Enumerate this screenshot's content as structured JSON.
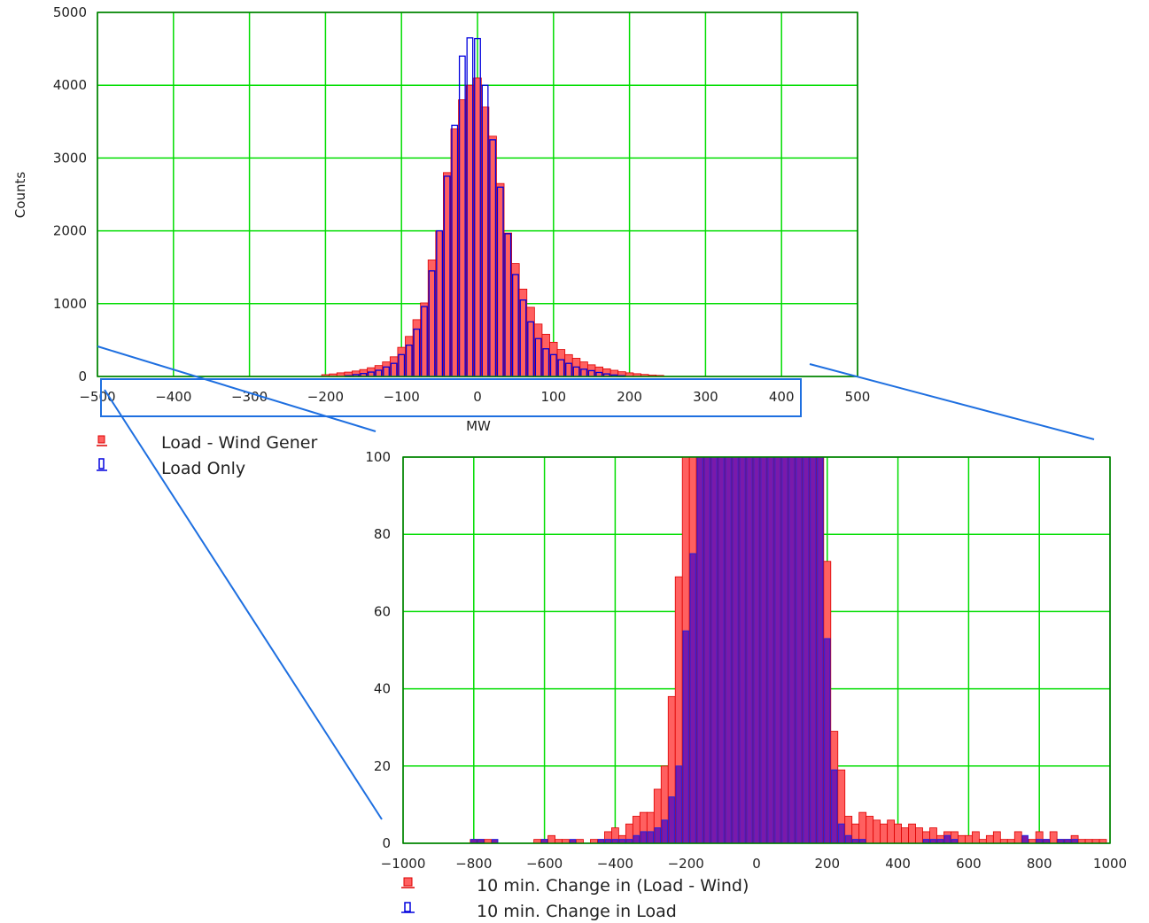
{
  "chart_data": [
    {
      "type": "bar",
      "title": "",
      "xlabel": "MW",
      "ylabel": "Counts",
      "xlim": [
        -500,
        500
      ],
      "ylim": [
        0,
        5000
      ],
      "xticks": [
        "−500",
        "−400",
        "−300",
        "−200",
        "−100",
        "0",
        "100",
        "200",
        "300",
        "400",
        "500"
      ],
      "yticks": [
        "0",
        "1000",
        "2000",
        "3000",
        "4000",
        "5000"
      ],
      "grid": true,
      "grid_color": "#00dd00",
      "bin_width": 10,
      "legend": {
        "placement": "bottom-left"
      },
      "series": [
        {
          "name": "Load - Wind Gener",
          "style": "filled",
          "fill": "#ff6060",
          "edge": "#dd0000",
          "x": [
            -200,
            -190,
            -180,
            -170,
            -160,
            -150,
            -140,
            -130,
            -120,
            -110,
            -100,
            -90,
            -80,
            -70,
            -60,
            -50,
            -40,
            -30,
            -20,
            -10,
            0,
            10,
            20,
            30,
            40,
            50,
            60,
            70,
            80,
            90,
            100,
            110,
            120,
            130,
            140,
            150,
            160,
            170,
            180,
            190,
            200,
            210,
            220,
            230,
            240
          ],
          "values": [
            25,
            35,
            50,
            60,
            75,
            95,
            120,
            150,
            200,
            270,
            400,
            550,
            780,
            1010,
            1600,
            2000,
            2800,
            3400,
            3800,
            4000,
            4100,
            3700,
            3300,
            2650,
            1970,
            1550,
            1200,
            950,
            720,
            580,
            470,
            370,
            300,
            250,
            200,
            160,
            130,
            105,
            85,
            65,
            50,
            38,
            28,
            20,
            15
          ]
        },
        {
          "name": "Load Only",
          "style": "outline",
          "fill": "#3333ee",
          "edge": "#0000dd",
          "x": [
            -170,
            -160,
            -150,
            -140,
            -130,
            -120,
            -110,
            -100,
            -90,
            -80,
            -70,
            -60,
            -50,
            -40,
            -30,
            -20,
            -10,
            0,
            10,
            20,
            30,
            40,
            50,
            60,
            70,
            80,
            90,
            100,
            110,
            120,
            130,
            140,
            150,
            160,
            170,
            180,
            190
          ],
          "values": [
            10,
            25,
            40,
            60,
            85,
            130,
            180,
            300,
            430,
            650,
            960,
            1450,
            2000,
            2750,
            3450,
            4400,
            4650,
            4640,
            4000,
            3250,
            2600,
            1960,
            1400,
            1050,
            750,
            520,
            380,
            300,
            230,
            180,
            130,
            100,
            80,
            55,
            35,
            20,
            10
          ]
        }
      ]
    },
    {
      "type": "bar",
      "title": "",
      "xlabel": "",
      "ylabel": "",
      "xlim": [
        -1000,
        1000
      ],
      "ylim": [
        0,
        100
      ],
      "xticks": [
        "−1000",
        "−800",
        "−600",
        "−400",
        "−200",
        "0",
        "200",
        "400",
        "600",
        "800",
        "1000"
      ],
      "yticks": [
        "0",
        "20",
        "40",
        "60",
        "80",
        "100"
      ],
      "grid": true,
      "grid_color": "#00dd00",
      "bin_width": 20,
      "legend": {
        "placement": "bottom"
      },
      "series": [
        {
          "name": "10 min. Change in (Load - Wind)",
          "style": "filled",
          "fill": "#ff6060",
          "edge": "#dd0000",
          "x": [
            -800,
            -780,
            -760,
            -620,
            -600,
            -580,
            -560,
            -540,
            -500,
            -460,
            -440,
            -420,
            -400,
            -380,
            -360,
            -340,
            -320,
            -300,
            -280,
            -260,
            -240,
            -220,
            -200,
            -180,
            -160,
            -140,
            -120,
            -100,
            -80,
            -60,
            -40,
            -20,
            0,
            20,
            40,
            60,
            80,
            100,
            120,
            140,
            160,
            180,
            200,
            220,
            240,
            260,
            280,
            300,
            320,
            340,
            360,
            380,
            400,
            420,
            440,
            460,
            480,
            500,
            520,
            540,
            560,
            580,
            600,
            620,
            640,
            660,
            680,
            700,
            720,
            740,
            760,
            780,
            800,
            820,
            840,
            860,
            880,
            900,
            920,
            940,
            960,
            980
          ],
          "values": [
            1,
            1,
            1,
            1,
            1,
            2,
            1,
            1,
            1,
            1,
            1,
            3,
            4,
            2,
            5,
            7,
            8,
            8,
            14,
            20,
            38,
            69,
            100,
            100,
            100,
            100,
            100,
            100,
            100,
            100,
            100,
            100,
            100,
            100,
            100,
            100,
            100,
            100,
            100,
            100,
            100,
            100,
            73,
            29,
            19,
            7,
            5,
            8,
            7,
            6,
            5,
            6,
            5,
            4,
            5,
            4,
            3,
            4,
            2,
            3,
            3,
            2,
            2,
            3,
            1,
            2,
            3,
            1,
            1,
            3,
            1,
            1,
            3,
            1,
            3,
            1,
            1,
            2,
            1,
            1,
            1,
            1
          ]
        },
        {
          "name": "10 min. Change in Load",
          "style": "filled-dark",
          "fill": "#7a1aaa",
          "edge": "#2222dd",
          "x": [
            -800,
            -780,
            -740,
            -600,
            -520,
            -440,
            -420,
            -400,
            -380,
            -360,
            -340,
            -320,
            -300,
            -280,
            -260,
            -240,
            -220,
            -200,
            -180,
            -160,
            -140,
            -120,
            -100,
            -80,
            -60,
            -40,
            -20,
            0,
            20,
            40,
            60,
            80,
            100,
            120,
            140,
            160,
            180,
            200,
            220,
            240,
            260,
            280,
            300,
            480,
            500,
            520,
            540,
            560,
            760,
            800,
            820,
            860,
            880,
            900
          ],
          "values": [
            1,
            1,
            1,
            1,
            1,
            1,
            1,
            1,
            1,
            1,
            2,
            3,
            3,
            4,
            6,
            12,
            20,
            55,
            75,
            100,
            100,
            100,
            100,
            100,
            100,
            100,
            100,
            100,
            100,
            100,
            100,
            100,
            100,
            100,
            100,
            100,
            100,
            53,
            19,
            5,
            2,
            1,
            1,
            1,
            1,
            1,
            2,
            1,
            2,
            1,
            1,
            1,
            1,
            1
          ]
        }
      ]
    }
  ]
}
